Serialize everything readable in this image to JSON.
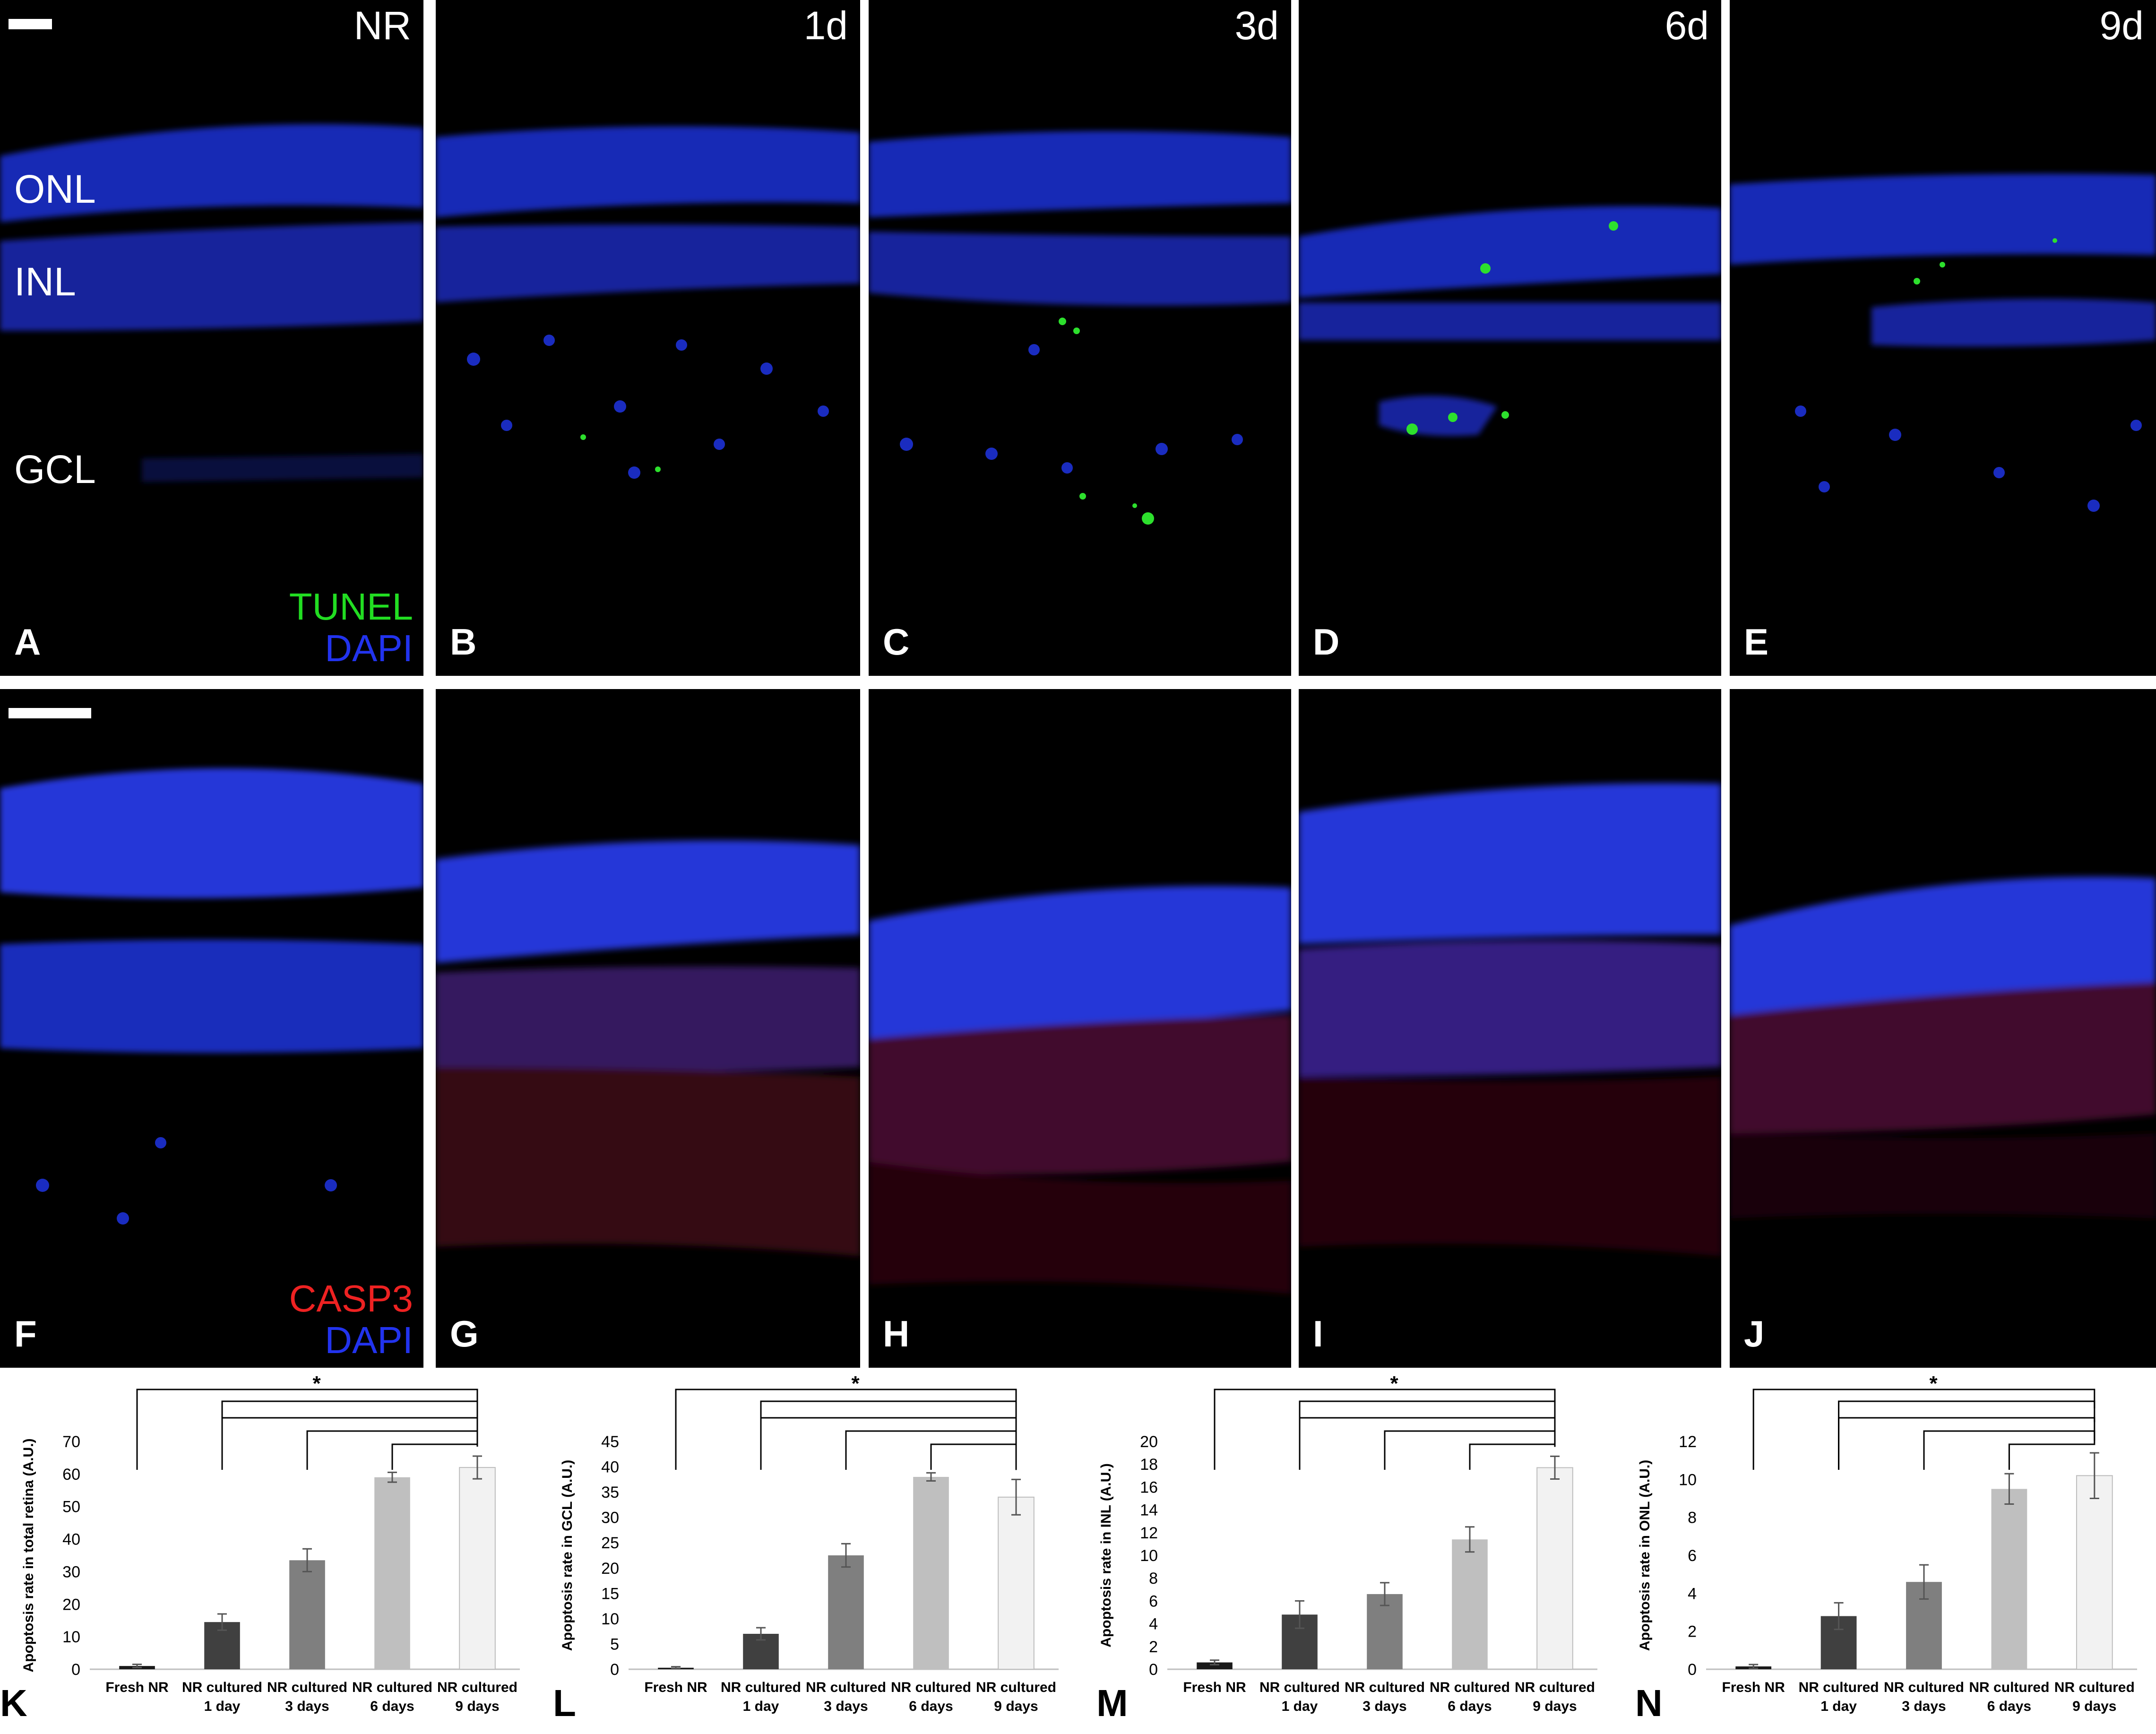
{
  "top_row": {
    "panels": [
      {
        "letter": "A",
        "time": "NR"
      },
      {
        "letter": "B",
        "time": "1d"
      },
      {
        "letter": "C",
        "time": "3d"
      },
      {
        "letter": "D",
        "time": "6d"
      },
      {
        "letter": "E",
        "time": "9d"
      }
    ],
    "layers": [
      "ONL",
      "INL",
      "GCL"
    ],
    "stain_primary": "TUNEL",
    "stain_secondary": "DAPI",
    "stain_primary_color": "#22dd22",
    "stain_secondary_color": "#2233ee"
  },
  "bottom_row": {
    "panels": [
      {
        "letter": "F"
      },
      {
        "letter": "G"
      },
      {
        "letter": "H"
      },
      {
        "letter": "I"
      },
      {
        "letter": "J"
      }
    ],
    "stain_primary": "CASP3",
    "stain_secondary": "DAPI",
    "stain_primary_color": "#ee2222",
    "stain_secondary_color": "#2233ee"
  },
  "chart_data": [
    {
      "letter": "K",
      "type": "bar",
      "categories": [
        "Fresh NR",
        "NR cultured 1 day",
        "NR cultured 3 days",
        "NR cultured 6 days",
        "NR cultured 9 days"
      ],
      "values": [
        1,
        14.5,
        33.5,
        59,
        62
      ],
      "errors": [
        0.5,
        2.5,
        3.5,
        1.5,
        3.5
      ],
      "ylabel": "Apoptosis rate in total retina (A.U.)",
      "ylim": [
        0,
        70
      ],
      "yticks": [
        0,
        10,
        20,
        30,
        40,
        50,
        60,
        70
      ],
      "significance": "*",
      "bar_colors": [
        "#1a1a1a",
        "#404040",
        "#7f7f7f",
        "#bfbfbf",
        "#f2f2f2"
      ]
    },
    {
      "letter": "L",
      "type": "bar",
      "categories": [
        "Fresh NR",
        "NR cultured 1 day",
        "NR cultured 3 days",
        "NR cultured 6 days",
        "NR cultured 9 days"
      ],
      "values": [
        0.3,
        7,
        22.5,
        38,
        34
      ],
      "errors": [
        0.2,
        1.2,
        2.3,
        0.8,
        3.5
      ],
      "ylabel": "Apoptosis rate in GCL (A.U.)",
      "ylim": [
        0,
        45
      ],
      "yticks": [
        0,
        5,
        10,
        15,
        20,
        25,
        30,
        35,
        40,
        45
      ],
      "significance": "*",
      "bar_colors": [
        "#1a1a1a",
        "#404040",
        "#7f7f7f",
        "#bfbfbf",
        "#f2f2f2"
      ]
    },
    {
      "letter": "M",
      "type": "bar",
      "categories": [
        "Fresh NR",
        "NR cultured 1 day",
        "NR cultured 3 days",
        "NR cultured 6 days",
        "NR cultured 9 days"
      ],
      "values": [
        0.6,
        4.8,
        6.6,
        11.4,
        17.7
      ],
      "errors": [
        0.2,
        1.2,
        1.0,
        1.1,
        1.0
      ],
      "ylabel": "Apoptosis rate in INL (A.U.)",
      "ylim": [
        0,
        20
      ],
      "yticks": [
        0,
        2,
        4,
        6,
        8,
        10,
        12,
        14,
        16,
        18,
        20
      ],
      "significance": "*",
      "bar_colors": [
        "#1a1a1a",
        "#404040",
        "#7f7f7f",
        "#bfbfbf",
        "#f2f2f2"
      ]
    },
    {
      "letter": "N",
      "type": "bar",
      "categories": [
        "Fresh NR",
        "NR cultured 1 day",
        "NR cultured 3 days",
        "NR cultured 6 days",
        "NR cultured 9 days"
      ],
      "values": [
        0.15,
        2.8,
        4.6,
        9.5,
        10.2
      ],
      "errors": [
        0.1,
        0.7,
        0.9,
        0.8,
        1.2
      ],
      "ylabel": "Apoptosis rate in ONL (A.U.)",
      "ylim": [
        0,
        12
      ],
      "yticks": [
        0,
        2,
        4,
        6,
        8,
        10,
        12
      ],
      "significance": "*",
      "bar_colors": [
        "#1a1a1a",
        "#404040",
        "#7f7f7f",
        "#bfbfbf",
        "#f2f2f2"
      ]
    }
  ]
}
